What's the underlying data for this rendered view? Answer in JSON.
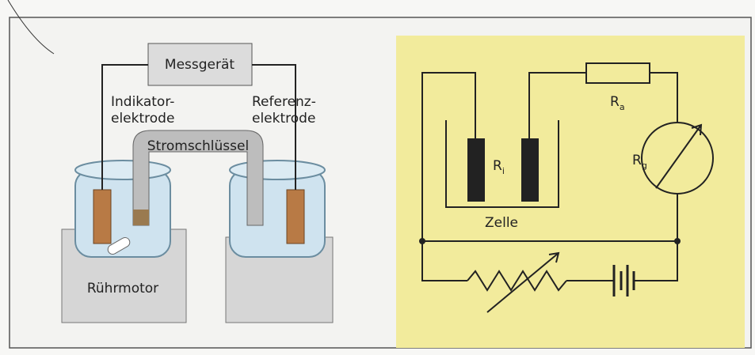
{
  "left": {
    "meter": "Messgerät",
    "indicator": [
      "Indikator-",
      "elektrode"
    ],
    "reference": [
      "Referenz-",
      "elektrode"
    ],
    "bridge": "Stromschlüssel",
    "motor": "Rührmotor"
  },
  "right": {
    "ri": {
      "main": "R",
      "sub": "i"
    },
    "cell": "Zelle",
    "ra": {
      "main": "R",
      "sub": "a"
    },
    "rg": {
      "main": "R",
      "sub": "g"
    }
  }
}
